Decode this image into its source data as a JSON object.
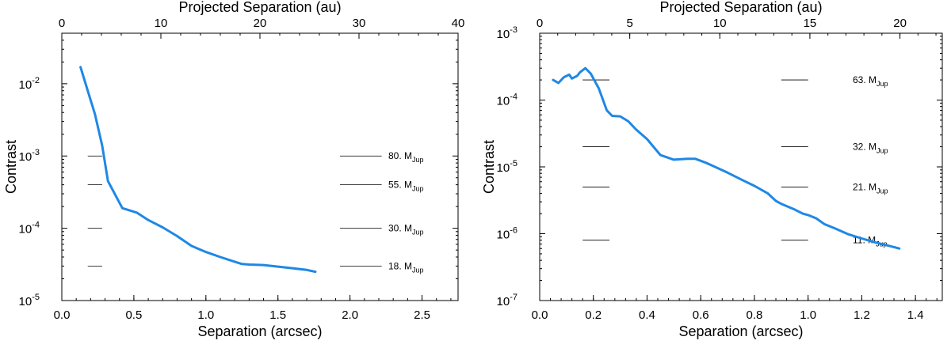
{
  "chart_data": [
    {
      "type": "line",
      "xlabel": "Separation (arcsec)",
      "ylabel": "Contrast",
      "x2label": "Projected Separation (au)",
      "xlim": [
        0.0,
        2.75
      ],
      "ylim": [
        1e-05,
        0.05
      ],
      "yscale": "log",
      "x2lim": [
        0,
        40
      ],
      "xticks": [
        0.0,
        0.5,
        1.0,
        1.5,
        2.0,
        2.5
      ],
      "xtick_labels": [
        "0.0",
        "0.5",
        "1.0",
        "1.5",
        "2.0",
        "2.5"
      ],
      "x2ticks": [
        0,
        10,
        20,
        30,
        40
      ],
      "x2tick_labels": [
        "0",
        "10",
        "20",
        "30",
        "40"
      ],
      "yticks": [
        1e-05,
        0.0001,
        0.001,
        0.01
      ],
      "ytick_labels": [
        {
          "base": "10",
          "exp": "-5"
        },
        {
          "base": "10",
          "exp": "-4"
        },
        {
          "base": "10",
          "exp": "-3"
        },
        {
          "base": "10",
          "exp": "-2"
        }
      ],
      "series": [
        {
          "name": "contrast curve",
          "color": "#1f88e5",
          "x": [
            0.13,
            0.18,
            0.23,
            0.28,
            0.32,
            0.42,
            0.52,
            0.6,
            0.7,
            0.8,
            0.9,
            1.0,
            1.1,
            1.2,
            1.25,
            1.3,
            1.4,
            1.5,
            1.6,
            1.7,
            1.76
          ],
          "y": [
            0.017,
            0.008,
            0.0038,
            0.0014,
            0.00045,
            0.00019,
            0.000165,
            0.00013,
            0.000103,
            7.8e-05,
            5.7e-05,
            4.7e-05,
            4e-05,
            3.45e-05,
            3.2e-05,
            3.15e-05,
            3.1e-05,
            2.95e-05,
            2.8e-05,
            2.65e-05,
            2.5e-05
          ]
        }
      ],
      "mass_lines": [
        {
          "contrast": 0.001,
          "value": "80.",
          "unit": "M",
          "sub": "Jup"
        },
        {
          "contrast": 0.0004,
          "value": "55.",
          "unit": "M",
          "sub": "Jup"
        },
        {
          "contrast": 0.0001,
          "value": "30.",
          "unit": "M",
          "sub": "Jup"
        },
        {
          "contrast": 3e-05,
          "value": "18.",
          "unit": "M",
          "sub": "Jup"
        }
      ],
      "mass_line_segments": [
        [
          0.18,
          0.28
        ],
        [
          1.93,
          2.22
        ]
      ]
    },
    {
      "type": "line",
      "xlabel": "Separation (arcsec)",
      "ylabel": "Contrast",
      "x2label": "Projected Separation (au)",
      "xlim": [
        0.0,
        1.5
      ],
      "ylim": [
        1e-07,
        0.001
      ],
      "yscale": "log",
      "x2lim": [
        0,
        22.35
      ],
      "xticks": [
        0.0,
        0.2,
        0.4,
        0.6,
        0.8,
        1.0,
        1.2,
        1.4
      ],
      "xtick_labels": [
        "0.0",
        "0.2",
        "0.4",
        "0.6",
        "0.8",
        "1.0",
        "1.2",
        "1.4"
      ],
      "x2ticks": [
        0,
        5,
        10,
        15,
        20
      ],
      "x2tick_labels": [
        "0",
        "5",
        "10",
        "15",
        "20"
      ],
      "yticks": [
        1e-07,
        1e-06,
        1e-05,
        0.0001,
        0.001
      ],
      "ytick_labels": [
        {
          "base": "10",
          "exp": "-7"
        },
        {
          "base": "10",
          "exp": "-6"
        },
        {
          "base": "10",
          "exp": "-5"
        },
        {
          "base": "10",
          "exp": "-4"
        },
        {
          "base": "10",
          "exp": "-3"
        }
      ],
      "series": [
        {
          "name": "contrast curve",
          "color": "#1f88e5",
          "x": [
            0.05,
            0.07,
            0.09,
            0.11,
            0.12,
            0.14,
            0.15,
            0.17,
            0.19,
            0.22,
            0.25,
            0.27,
            0.3,
            0.33,
            0.36,
            0.4,
            0.45,
            0.5,
            0.55,
            0.58,
            0.62,
            0.7,
            0.75,
            0.8,
            0.85,
            0.88,
            0.9,
            0.95,
            0.98,
            1.0,
            1.03,
            1.06,
            1.1,
            1.15,
            1.2,
            1.25,
            1.3,
            1.34
          ],
          "y": [
            0.0002,
            0.00018,
            0.00022,
            0.00024,
            0.00021,
            0.00023,
            0.00026,
            0.0003,
            0.00025,
            0.00015,
            7e-05,
            5.8e-05,
            5.7e-05,
            4.8e-05,
            3.6e-05,
            2.6e-05,
            1.5e-05,
            1.28e-05,
            1.32e-05,
            1.32e-05,
            1.15e-05,
            8.2e-06,
            6.5e-06,
            5.2e-06,
            4e-06,
            3.1e-06,
            2.8e-06,
            2.3e-06,
            2e-06,
            1.9e-06,
            1.7e-06,
            1.4e-06,
            1.2e-06,
            9.8e-07,
            8.5e-07,
            7.4e-07,
            6.6e-07,
            6e-07
          ]
        }
      ],
      "mass_lines": [
        {
          "contrast": 0.0002,
          "value": "63.",
          "unit": "M",
          "sub": "Jup"
        },
        {
          "contrast": 2e-05,
          "value": "32.",
          "unit": "M",
          "sub": "Jup"
        },
        {
          "contrast": 5e-06,
          "value": "21.",
          "unit": "M",
          "sub": "Jup"
        },
        {
          "contrast": 8e-07,
          "value": "11.",
          "unit": "M",
          "sub": "Jup"
        }
      ],
      "mass_line_segments": [
        [
          0.16,
          0.26
        ],
        [
          0.9,
          1.0
        ]
      ]
    }
  ]
}
